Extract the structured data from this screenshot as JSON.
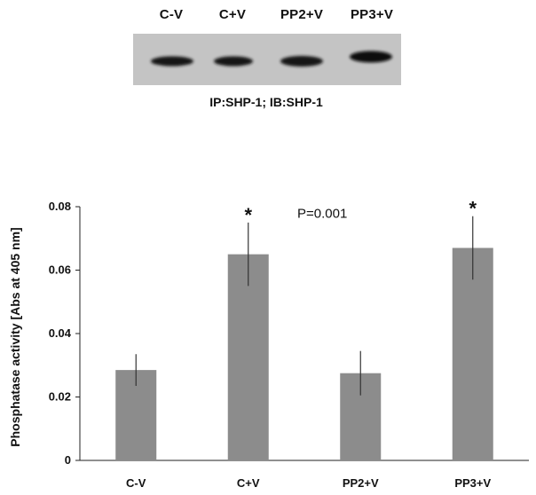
{
  "blot": {
    "lanes": [
      "C-V",
      "C+V",
      "PP2+V",
      "PP3+V"
    ],
    "caption": "IP:SHP-1; IB:SHP-1"
  },
  "chart_data": {
    "type": "bar",
    "categories": [
      "C-V",
      "C+V",
      "PP2+V",
      "PP3+V"
    ],
    "values": [
      0.0285,
      0.065,
      0.0275,
      0.067
    ],
    "errors": [
      0.005,
      0.01,
      0.007,
      0.01
    ],
    "ylabel": "Phosphatase activity [Abs at 405 nm]",
    "xlabel": "",
    "ylim": [
      0,
      0.08
    ],
    "yticks": [
      "0",
      "0.02",
      "0.04",
      "0.06",
      "0.08"
    ],
    "ytick_values": [
      0,
      0.02,
      0.04,
      0.06,
      0.08
    ],
    "significance": [
      "",
      "*",
      "",
      "*"
    ],
    "annotation": "P=0.001",
    "grid": false,
    "bar_color": "#8c8c8c"
  }
}
